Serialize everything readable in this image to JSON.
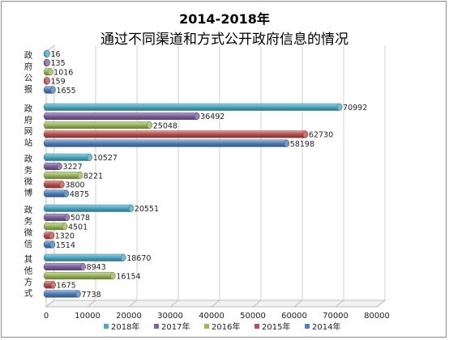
{
  "chart_data": {
    "type": "bar",
    "orientation": "horizontal",
    "style": "3d-cylinder",
    "title": "2014-2018年",
    "subtitle": "通过不同渠道和方式公开政府信息的情况",
    "categories": [
      "政府公报",
      "政府网站",
      "政务微博",
      "政务微信",
      "其他方式"
    ],
    "series": [
      {
        "name": "2018年",
        "color": "#4bacc6",
        "values": [
          16,
          70992,
          10527,
          20551,
          18670
        ]
      },
      {
        "name": "2017年",
        "color": "#8064a2",
        "values": [
          135,
          36492,
          3227,
          5078,
          8943
        ]
      },
      {
        "name": "2016年",
        "color": "#9bbb59",
        "values": [
          1016,
          25048,
          8221,
          4501,
          16154
        ]
      },
      {
        "name": "2015年",
        "color": "#c0504d",
        "values": [
          159,
          62730,
          3800,
          1320,
          1675
        ]
      },
      {
        "name": "2014年",
        "color": "#4f81bd",
        "values": [
          1655,
          58198,
          4875,
          1514,
          7738
        ]
      }
    ],
    "xlim": [
      0,
      80000
    ],
    "xticks": [
      "0",
      "10000",
      "20000",
      "30000",
      "40000",
      "50000",
      "60000",
      "70000",
      "80000"
    ],
    "data_labels": true,
    "legend": "bottom"
  }
}
